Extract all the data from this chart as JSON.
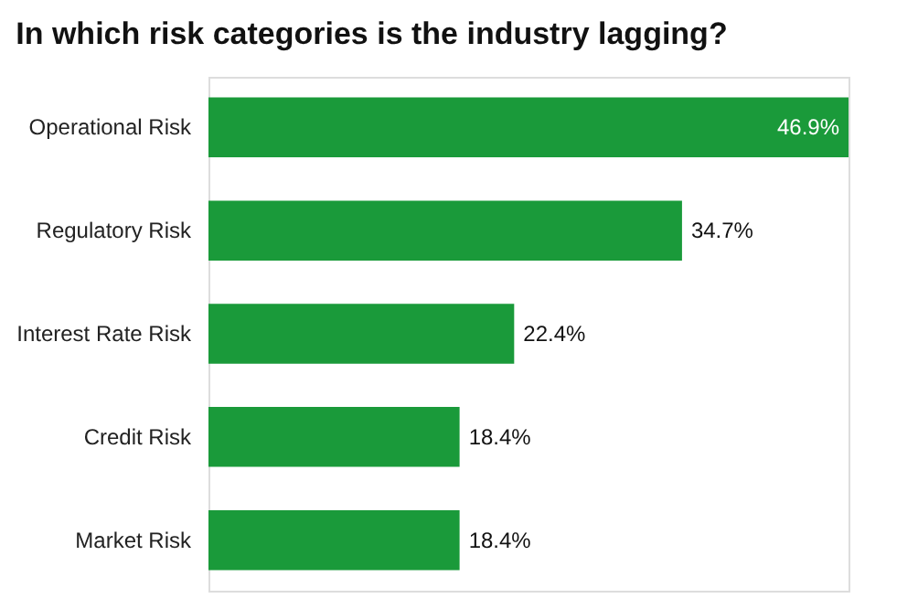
{
  "chart_data": {
    "type": "bar",
    "orientation": "horizontal",
    "title": "In which risk categories is the industry lagging?",
    "categories": [
      "Operational Risk",
      "Regulatory Risk",
      "Interest Rate Risk",
      "Credit Risk",
      "Market Risk"
    ],
    "values": [
      46.9,
      34.7,
      22.4,
      18.4,
      18.4
    ],
    "value_labels": [
      "46.9%",
      "34.7%",
      "22.4%",
      "18.4%",
      "18.4%"
    ],
    "color": "#1a9a3a"
  }
}
